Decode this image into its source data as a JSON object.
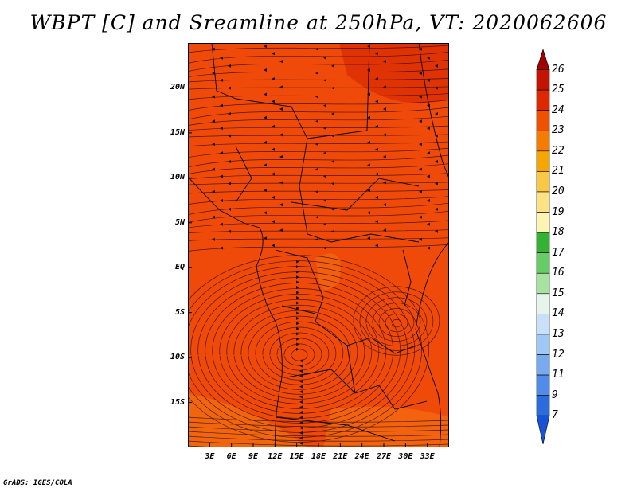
{
  "title": "WBPT [C] and Sreamline at 250hPa, VT: 2020062606",
  "footer": "GrADS: IGES/COLA",
  "map": {
    "lon_range": [
      0,
      36
    ],
    "lat_range": [
      -20,
      25
    ],
    "lat_labels": [
      "20N",
      "15N",
      "10N",
      "5N",
      "EQ",
      "5S",
      "10S",
      "15S"
    ],
    "lat_values": [
      20,
      15,
      10,
      5,
      0,
      -5,
      -10,
      -15
    ],
    "lon_labels": [
      "3E",
      "6E",
      "9E",
      "12E",
      "15E",
      "18E",
      "21E",
      "24E",
      "27E",
      "30E",
      "33E"
    ],
    "lon_values": [
      3,
      6,
      9,
      12,
      15,
      18,
      21,
      24,
      27,
      30,
      33
    ]
  },
  "colorbar": {
    "labels": [
      "26",
      "25",
      "24",
      "23",
      "22",
      "21",
      "20",
      "19",
      "18",
      "17",
      "16",
      "15",
      "14",
      "13",
      "12",
      "11",
      "9",
      "7"
    ],
    "colors": [
      "#a50000",
      "#c41400",
      "#e02800",
      "#f05000",
      "#f57c00",
      "#f7a500",
      "#fbc846",
      "#fde182",
      "#fdf4b4",
      "#33b233",
      "#66cc66",
      "#a8e2a0",
      "#e6f4ec",
      "#c8e0fa",
      "#a0c8f5",
      "#78aaf0",
      "#4f8ceb",
      "#2a6cde",
      "#1852d6"
    ]
  }
}
